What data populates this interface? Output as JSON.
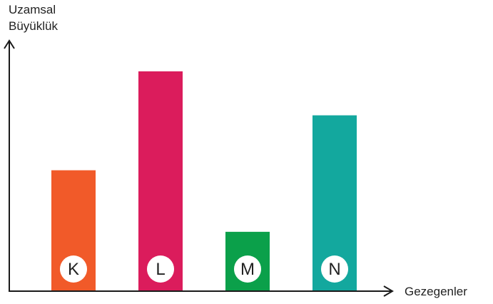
{
  "chart_data": {
    "type": "bar",
    "xlabel": "Gezegenler",
    "ylabel_lines": [
      "Uzamsal",
      "Büyüklük"
    ],
    "categories": [
      "K",
      "L",
      "M",
      "N"
    ],
    "values": [
      55,
      100,
      27,
      80
    ],
    "ylim": [
      0,
      100
    ],
    "colors": [
      "#F15A29",
      "#DB1C5C",
      "#0BA04A",
      "#13A89E"
    ],
    "grid": false,
    "axis_tick_labels": false
  }
}
